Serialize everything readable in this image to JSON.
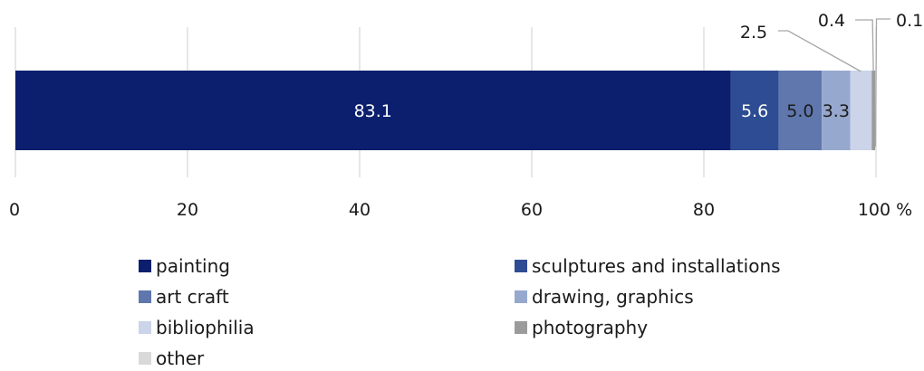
{
  "chart_data": {
    "type": "bar",
    "orientation": "horizontal",
    "stacked": true,
    "categories": [
      ""
    ],
    "series": [
      {
        "name": "painting",
        "values": [
          83.1
        ],
        "color": "#0b1f6e",
        "label": "83.1",
        "label_color": "#ffffff",
        "label_placement": "inside"
      },
      {
        "name": "sculptures and installations",
        "values": [
          5.6
        ],
        "color": "#2e4c94",
        "label": "5.6",
        "label_color": "#ffffff",
        "label_placement": "inside"
      },
      {
        "name": "art craft",
        "values": [
          5.0
        ],
        "color": "#5f77ad",
        "label": "5.0",
        "label_color": "#1a1a1a",
        "label_placement": "inside"
      },
      {
        "name": "drawing, graphics",
        "values": [
          3.3
        ],
        "color": "#97a8cf",
        "label": "3.3",
        "label_color": "#1a1a1a",
        "label_placement": "inside"
      },
      {
        "name": "bibliophilia",
        "values": [
          2.5
        ],
        "color": "#cbd4e8",
        "label": "2.5",
        "label_color": "#1a1a1a",
        "label_placement": "callout"
      },
      {
        "name": "photography",
        "values": [
          0.4
        ],
        "color": "#9b9b9b",
        "label": "0.4",
        "label_color": "#1a1a1a",
        "label_placement": "callout"
      },
      {
        "name": "other",
        "values": [
          0.1
        ],
        "color": "#d9d9d9",
        "label": "0.1",
        "label_color": "#1a1a1a",
        "label_placement": "callout"
      }
    ],
    "xlim": [
      0,
      100
    ],
    "xticks": [
      "0",
      "20",
      "40",
      "60",
      "80",
      "100 %"
    ],
    "grid": true,
    "legend": "bottom"
  }
}
